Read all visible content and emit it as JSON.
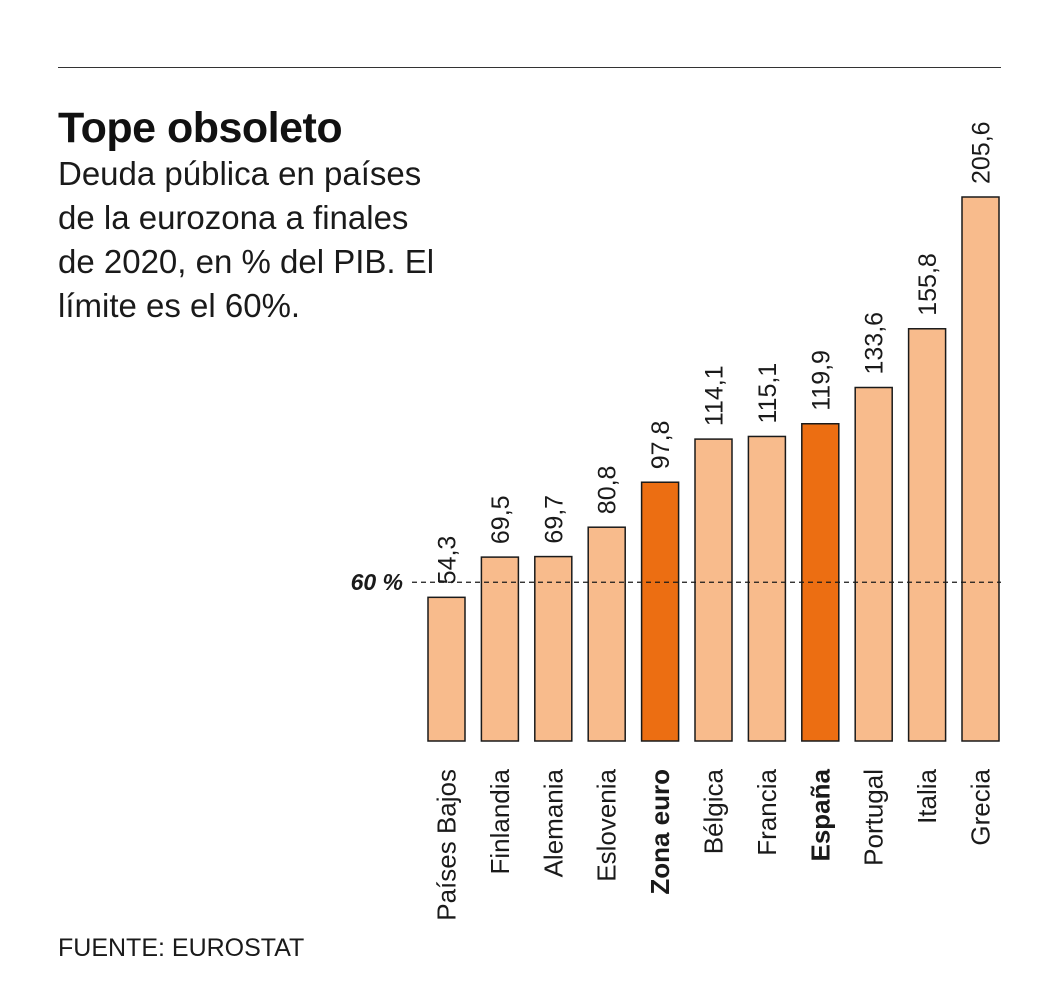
{
  "chart_data": {
    "type": "bar",
    "title": "Tope obsoleto",
    "subtitle": "Deuda pública en países de la eurozona a finales de 2020, en % del PIB. El límite es el 60%.",
    "source": "FUENTE: EUROSTAT",
    "categories": [
      "Países Bajos",
      "Finlandia",
      "Alemania",
      "Eslovenia",
      "Zona euro",
      "Bélgica",
      "Francia",
      "España",
      "Portugal",
      "Italia",
      "Grecia"
    ],
    "values": [
      54.3,
      69.5,
      69.7,
      80.8,
      97.8,
      114.1,
      115.1,
      119.9,
      133.6,
      155.8,
      205.6
    ],
    "value_labels": [
      "54,3",
      "69,5",
      "69,7",
      "80,8",
      "97,8",
      "114,1",
      "115,1",
      "119,9",
      "133,6",
      "155,8",
      "205,6"
    ],
    "highlighted": [
      "Zona euro",
      "España"
    ],
    "reference_line": {
      "value": 60,
      "label": "60 %"
    },
    "ylim": [
      0,
      205.6
    ],
    "grid": false,
    "colors": {
      "bar": "#F8BB8C",
      "highlight": "#EC6E12",
      "stroke": "#1a1a1a",
      "reference": "#1a1a1a"
    }
  }
}
